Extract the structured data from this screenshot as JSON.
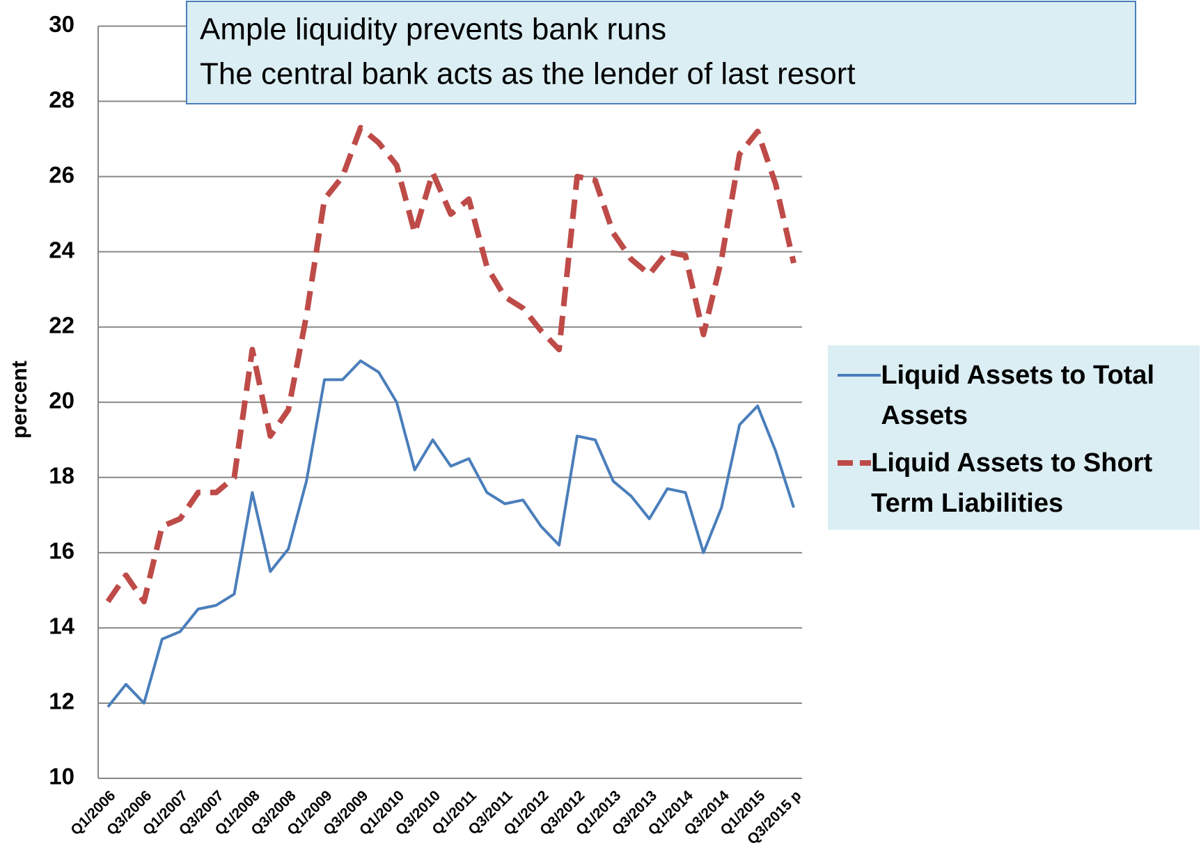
{
  "chart_data": {
    "type": "line",
    "annotation": [
      "Ample liquidity prevents bank runs",
      "The central bank acts as the lender of last resort"
    ],
    "y_label": "percent",
    "categories": [
      "Q1/2006",
      null,
      "Q3/2006",
      null,
      "Q1/2007",
      null,
      "Q3/2007",
      null,
      "Q1/2008",
      null,
      "Q3/2008",
      null,
      "Q1/2009",
      null,
      "Q3/2009",
      null,
      "Q1/2010",
      null,
      "Q3/2010",
      null,
      "Q1/2011",
      null,
      "Q3/2011",
      null,
      "Q1/2012",
      null,
      "Q3/2012",
      null,
      "Q1/2013",
      null,
      "Q3/2013",
      null,
      "Q1/2014",
      null,
      "Q3/2014",
      null,
      "Q1/2015",
      null,
      "Q3/2015 p"
    ],
    "series": [
      {
        "name": "Liquid Assets to Total Assets",
        "color": "#4a7ebb",
        "dashed": false,
        "values": [
          11.9,
          12.5,
          12.0,
          13.7,
          13.9,
          14.5,
          14.6,
          14.9,
          17.6,
          15.5,
          16.1,
          17.9,
          20.6,
          20.6,
          21.1,
          20.8,
          20.0,
          18.2,
          19.0,
          18.3,
          18.5,
          17.6,
          17.3,
          17.4,
          16.7,
          16.2,
          19.1,
          19.0,
          17.9,
          17.5,
          16.9,
          17.7,
          17.6,
          16.0,
          17.2,
          19.4,
          19.9,
          18.7,
          17.2
        ]
      },
      {
        "name": "Liquid Assets to Short Term Liabilities",
        "color": "#be4b48",
        "dashed": true,
        "values": [
          14.7,
          15.4,
          14.7,
          16.7,
          16.9,
          17.6,
          17.6,
          18.0,
          21.4,
          19.1,
          19.8,
          22.3,
          25.4,
          26.0,
          27.3,
          26.9,
          26.3,
          24.5,
          26.1,
          25.0,
          25.4,
          23.6,
          22.8,
          22.5,
          21.9,
          21.4,
          26.0,
          25.9,
          24.5,
          23.8,
          23.4,
          24.0,
          23.9,
          21.8,
          23.8,
          26.6,
          27.2,
          25.8,
          23.7
        ]
      }
    ],
    "ylim": [
      10,
      30
    ],
    "yticks": [
      10,
      12,
      14,
      16,
      18,
      20,
      22,
      24,
      26,
      28,
      30
    ],
    "grid": true
  }
}
